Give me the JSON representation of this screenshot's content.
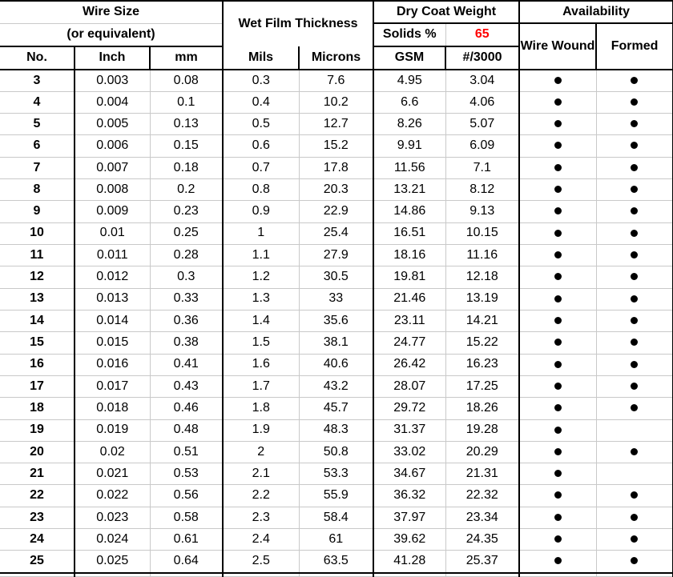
{
  "colors": {
    "solids_value_red": "#FF0000",
    "gridline_gray": "#C9C9C9",
    "border_black": "#000000",
    "background": "#FFFFFF"
  },
  "chart_data": {
    "type": "table",
    "column_groups": [
      {
        "title": "Wire Size",
        "subtitle": "(or equivalent)"
      },
      {
        "title": "Wet Film Thickness"
      },
      {
        "title": "Dry Coat Weight",
        "solids_label": "Solids %",
        "solids_value": "65"
      },
      {
        "title": "Availability",
        "sub_columns": [
          "Wire Wound",
          "Formed"
        ]
      }
    ],
    "columns": [
      "No.",
      "Inch",
      "mm",
      "Mils",
      "Microns",
      "GSM",
      "#/3000",
      "Wire Wound",
      "Formed"
    ],
    "rows": [
      {
        "no": "3",
        "inch": "0.003",
        "mm": "0.08",
        "mils": "0.3",
        "microns": "7.6",
        "gsm": "4.95",
        "per3000": "3.04",
        "wire_wound": true,
        "formed": true
      },
      {
        "no": "4",
        "inch": "0.004",
        "mm": "0.1",
        "mils": "0.4",
        "microns": "10.2",
        "gsm": "6.6",
        "per3000": "4.06",
        "wire_wound": true,
        "formed": true
      },
      {
        "no": "5",
        "inch": "0.005",
        "mm": "0.13",
        "mils": "0.5",
        "microns": "12.7",
        "gsm": "8.26",
        "per3000": "5.07",
        "wire_wound": true,
        "formed": true
      },
      {
        "no": "6",
        "inch": "0.006",
        "mm": "0.15",
        "mils": "0.6",
        "microns": "15.2",
        "gsm": "9.91",
        "per3000": "6.09",
        "wire_wound": true,
        "formed": true
      },
      {
        "no": "7",
        "inch": "0.007",
        "mm": "0.18",
        "mils": "0.7",
        "microns": "17.8",
        "gsm": "11.56",
        "per3000": "7.1",
        "wire_wound": true,
        "formed": true
      },
      {
        "no": "8",
        "inch": "0.008",
        "mm": "0.2",
        "mils": "0.8",
        "microns": "20.3",
        "gsm": "13.21",
        "per3000": "8.12",
        "wire_wound": true,
        "formed": true
      },
      {
        "no": "9",
        "inch": "0.009",
        "mm": "0.23",
        "mils": "0.9",
        "microns": "22.9",
        "gsm": "14.86",
        "per3000": "9.13",
        "wire_wound": true,
        "formed": true
      },
      {
        "no": "10",
        "inch": "0.01",
        "mm": "0.25",
        "mils": "1",
        "microns": "25.4",
        "gsm": "16.51",
        "per3000": "10.15",
        "wire_wound": true,
        "formed": true
      },
      {
        "no": "11",
        "inch": "0.011",
        "mm": "0.28",
        "mils": "1.1",
        "microns": "27.9",
        "gsm": "18.16",
        "per3000": "11.16",
        "wire_wound": true,
        "formed": true
      },
      {
        "no": "12",
        "inch": "0.012",
        "mm": "0.3",
        "mils": "1.2",
        "microns": "30.5",
        "gsm": "19.81",
        "per3000": "12.18",
        "wire_wound": true,
        "formed": true
      },
      {
        "no": "13",
        "inch": "0.013",
        "mm": "0.33",
        "mils": "1.3",
        "microns": "33",
        "gsm": "21.46",
        "per3000": "13.19",
        "wire_wound": true,
        "formed": true
      },
      {
        "no": "14",
        "inch": "0.014",
        "mm": "0.36",
        "mils": "1.4",
        "microns": "35.6",
        "gsm": "23.11",
        "per3000": "14.21",
        "wire_wound": true,
        "formed": true
      },
      {
        "no": "15",
        "inch": "0.015",
        "mm": "0.38",
        "mils": "1.5",
        "microns": "38.1",
        "gsm": "24.77",
        "per3000": "15.22",
        "wire_wound": true,
        "formed": true
      },
      {
        "no": "16",
        "inch": "0.016",
        "mm": "0.41",
        "mils": "1.6",
        "microns": "40.6",
        "gsm": "26.42",
        "per3000": "16.23",
        "wire_wound": true,
        "formed": true
      },
      {
        "no": "17",
        "inch": "0.017",
        "mm": "0.43",
        "mils": "1.7",
        "microns": "43.2",
        "gsm": "28.07",
        "per3000": "17.25",
        "wire_wound": true,
        "formed": true
      },
      {
        "no": "18",
        "inch": "0.018",
        "mm": "0.46",
        "mils": "1.8",
        "microns": "45.7",
        "gsm": "29.72",
        "per3000": "18.26",
        "wire_wound": true,
        "formed": true
      },
      {
        "no": "19",
        "inch": "0.019",
        "mm": "0.48",
        "mils": "1.9",
        "microns": "48.3",
        "gsm": "31.37",
        "per3000": "19.28",
        "wire_wound": true,
        "formed": false
      },
      {
        "no": "20",
        "inch": "0.02",
        "mm": "0.51",
        "mils": "2",
        "microns": "50.8",
        "gsm": "33.02",
        "per3000": "20.29",
        "wire_wound": true,
        "formed": true
      },
      {
        "no": "21",
        "inch": "0.021",
        "mm": "0.53",
        "mils": "2.1",
        "microns": "53.3",
        "gsm": "34.67",
        "per3000": "21.31",
        "wire_wound": true,
        "formed": false
      },
      {
        "no": "22",
        "inch": "0.022",
        "mm": "0.56",
        "mils": "2.2",
        "microns": "55.9",
        "gsm": "36.32",
        "per3000": "22.32",
        "wire_wound": true,
        "formed": true
      },
      {
        "no": "23",
        "inch": "0.023",
        "mm": "0.58",
        "mils": "2.3",
        "microns": "58.4",
        "gsm": "37.97",
        "per3000": "23.34",
        "wire_wound": true,
        "formed": true
      },
      {
        "no": "24",
        "inch": "0.024",
        "mm": "0.61",
        "mils": "2.4",
        "microns": "61",
        "gsm": "39.62",
        "per3000": "24.35",
        "wire_wound": true,
        "formed": true
      },
      {
        "no": "25",
        "inch": "0.025",
        "mm": "0.64",
        "mils": "2.5",
        "microns": "63.5",
        "gsm": "41.28",
        "per3000": "25.37",
        "wire_wound": true,
        "formed": true
      }
    ]
  }
}
